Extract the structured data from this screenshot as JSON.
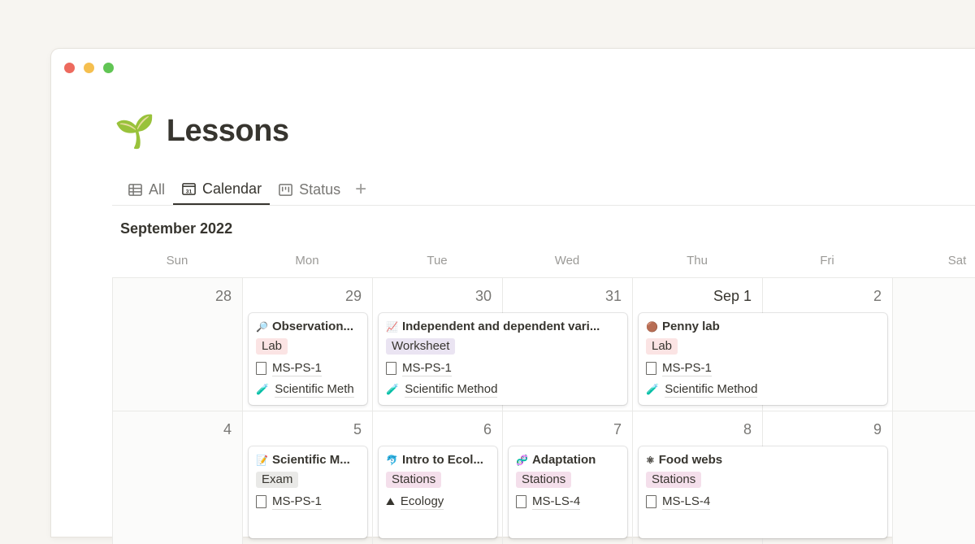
{
  "window": {
    "traffic_lights": [
      "#ed6a5e",
      "#f5bf4f",
      "#61c554"
    ]
  },
  "page": {
    "icon": "🌱",
    "title": "Lessons"
  },
  "tabs": [
    {
      "label": "All",
      "icon": "table-icon"
    },
    {
      "label": "Calendar",
      "icon": "calendar-icon",
      "active": true
    },
    {
      "label": "Status",
      "icon": "board-icon"
    }
  ],
  "calendar": {
    "month": "September 2022",
    "days": [
      "Sun",
      "Mon",
      "Tue",
      "Wed",
      "Thu",
      "Fri",
      "Sat"
    ],
    "weeks": [
      [
        "28",
        "29",
        "30",
        "31",
        "Sep 1",
        "2",
        ""
      ],
      [
        "4",
        "5",
        "6",
        "7",
        "8",
        "9",
        ""
      ]
    ],
    "cards": [
      {
        "week": 0,
        "col": 1,
        "span": 1,
        "icon": "🔎",
        "title": "Observation...",
        "tag": "Lab",
        "tag_bg": "#fbe4e4",
        "props": [
          {
            "icon": "doc",
            "text": "MS-PS-1"
          },
          {
            "icon": "🧪",
            "text": "Scientific Meth"
          }
        ]
      },
      {
        "week": 0,
        "col": 2,
        "span": 2,
        "icon": "📈",
        "title": "Independent and dependent vari...",
        "tag": "Worksheet",
        "tag_bg": "#eae4f2",
        "props": [
          {
            "icon": "doc",
            "text": "MS-PS-1"
          },
          {
            "icon": "🧪",
            "text": "Scientific Method"
          }
        ]
      },
      {
        "week": 0,
        "col": 4,
        "span": 2,
        "icon": "🟤",
        "title": "Penny lab",
        "tag": "Lab",
        "tag_bg": "#fbe4e4",
        "props": [
          {
            "icon": "doc",
            "text": "MS-PS-1"
          },
          {
            "icon": "🧪",
            "text": "Scientific Method"
          }
        ]
      },
      {
        "week": 1,
        "col": 1,
        "span": 1,
        "icon": "📝",
        "title": "Scientific M...",
        "tag": "Exam",
        "tag_bg": "#e9e9e7",
        "props": [
          {
            "icon": "doc",
            "text": "MS-PS-1"
          }
        ]
      },
      {
        "week": 1,
        "col": 2,
        "span": 1,
        "icon": "🐬",
        "title": "Intro to Ecol...",
        "tag": "Stations",
        "tag_bg": "#f4dfeb",
        "props": [
          {
            "icon": "⛰",
            "text": "Ecology"
          }
        ]
      },
      {
        "week": 1,
        "col": 3,
        "span": 1,
        "icon": "🧬",
        "title": "Adaptation",
        "tag": "Stations",
        "tag_bg": "#f4dfeb",
        "props": [
          {
            "icon": "doc",
            "text": "MS-LS-4"
          }
        ]
      },
      {
        "week": 1,
        "col": 4,
        "span": 2,
        "icon": "⚛",
        "title": "Food webs",
        "tag": "Stations",
        "tag_bg": "#f4dfeb",
        "props": [
          {
            "icon": "doc",
            "text": "MS-LS-4"
          }
        ]
      }
    ]
  }
}
